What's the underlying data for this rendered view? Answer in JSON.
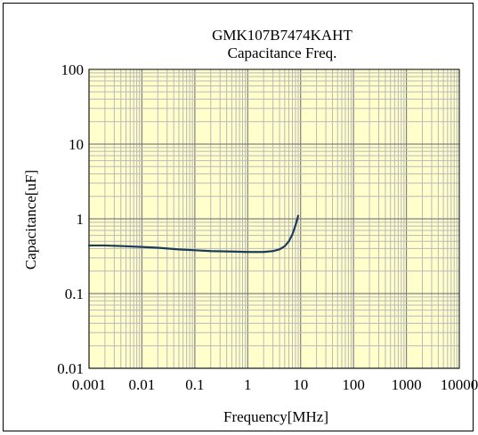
{
  "chart_data": {
    "type": "line",
    "title": "GMK107B7474KAHT",
    "subtitle": "Capacitance Freq.",
    "xlabel": "Frequency[MHz]",
    "ylabel": "Capacitance[uF]",
    "x_scale": "log",
    "y_scale": "log",
    "xlim": [
      0.001,
      10000
    ],
    "ylim": [
      0.01,
      100
    ],
    "x_ticks": [
      "0.001",
      "0.01",
      "0.1",
      "1",
      "10",
      "100",
      "1000",
      "10000"
    ],
    "y_ticks": [
      "100",
      "10",
      "1",
      "0.1",
      "0.01"
    ],
    "grid": true,
    "legend": "none",
    "colors": {
      "plot_background": "#ffffcc",
      "grid_minor": "#b9b9b9",
      "grid_major": "#808080",
      "series": "#1b3a5c"
    },
    "series": [
      {
        "x": [
          0.001,
          0.002,
          0.005,
          0.01,
          0.02,
          0.05,
          0.1,
          0.2,
          0.5,
          1,
          2,
          3,
          4,
          5,
          6,
          7,
          8,
          8.7,
          9
        ],
        "y": [
          0.44,
          0.44,
          0.43,
          0.42,
          0.41,
          0.39,
          0.38,
          0.37,
          0.365,
          0.36,
          0.36,
          0.37,
          0.39,
          0.43,
          0.5,
          0.62,
          0.82,
          1.0,
          1.1
        ]
      }
    ]
  }
}
